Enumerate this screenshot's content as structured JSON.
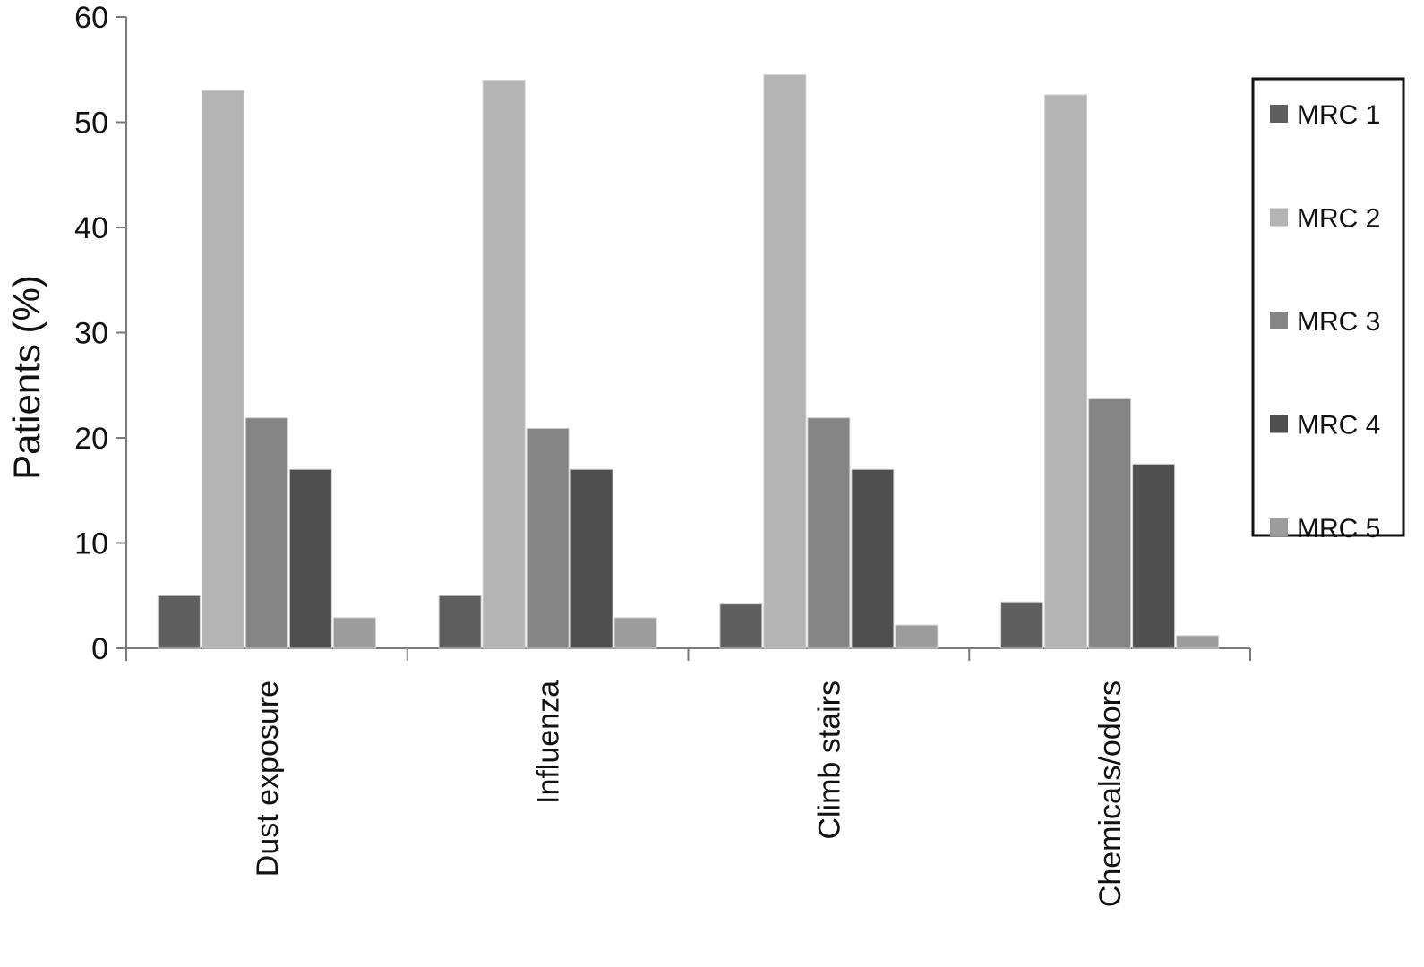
{
  "chart_data": {
    "type": "bar",
    "title": "",
    "xlabel": "",
    "ylabel": "Patients (%)",
    "ylim": [
      0,
      60
    ],
    "yticks": [
      0,
      10,
      20,
      30,
      40,
      50,
      60
    ],
    "grid": false,
    "legend_position": "right",
    "categories": [
      "Dust exposure",
      "Influenza",
      "Climb stairs",
      "Chemicals/odors"
    ],
    "series": [
      {
        "name": "MRC 1",
        "color": "#5f5f5f",
        "values": [
          5.0,
          5.0,
          4.2,
          4.4
        ]
      },
      {
        "name": "MRC 2",
        "color": "#b4b4b4",
        "values": [
          53.0,
          54.0,
          54.5,
          52.6
        ]
      },
      {
        "name": "MRC 3",
        "color": "#848484",
        "values": [
          21.9,
          20.9,
          21.9,
          23.7
        ]
      },
      {
        "name": "MRC 4",
        "color": "#4f4f4f",
        "values": [
          17.0,
          17.0,
          17.0,
          17.5
        ]
      },
      {
        "name": "MRC 5",
        "color": "#9c9c9c",
        "values": [
          2.9,
          2.9,
          2.2,
          1.2
        ]
      }
    ]
  }
}
